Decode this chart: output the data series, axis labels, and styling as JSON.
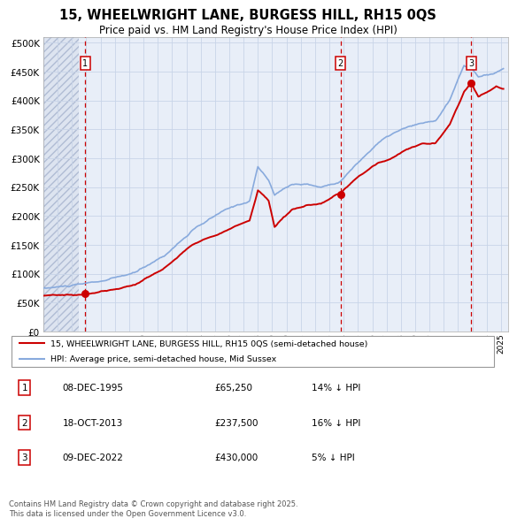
{
  "title_line1": "15, WHEELWRIGHT LANE, BURGESS HILL, RH15 0QS",
  "title_line2": "Price paid vs. HM Land Registry's House Price Index (HPI)",
  "ytick_values": [
    0,
    50000,
    100000,
    150000,
    200000,
    250000,
    300000,
    350000,
    400000,
    450000,
    500000
  ],
  "xmin": 1993.0,
  "xmax": 2025.5,
  "ymin": 0,
  "ymax": 510000,
  "sale_dates": [
    1995.92,
    2013.79,
    2022.92
  ],
  "sale_prices": [
    65250,
    237500,
    430000
  ],
  "sale_labels": [
    "1",
    "2",
    "3"
  ],
  "hpi_line_color": "#88aadd",
  "price_line_color": "#cc0000",
  "sale_marker_color": "#cc0000",
  "vertical_line_color": "#cc0000",
  "grid_color": "#c8d4e8",
  "background_plot": "#e8eef8",
  "legend_label_red": "15, WHEELWRIGHT LANE, BURGESS HILL, RH15 0QS (semi-detached house)",
  "legend_label_blue": "HPI: Average price, semi-detached house, Mid Sussex",
  "table_entries": [
    {
      "label": "1",
      "date": "08-DEC-1995",
      "price": "£65,250",
      "note": "14% ↓ HPI"
    },
    {
      "label": "2",
      "date": "18-OCT-2013",
      "price": "£237,500",
      "note": "16% ↓ HPI"
    },
    {
      "label": "3",
      "date": "09-DEC-2022",
      "price": "£430,000",
      "note": "5% ↓ HPI"
    }
  ],
  "footer_text": "Contains HM Land Registry data © Crown copyright and database right 2025.\nThis data is licensed under the Open Government Licence v3.0."
}
